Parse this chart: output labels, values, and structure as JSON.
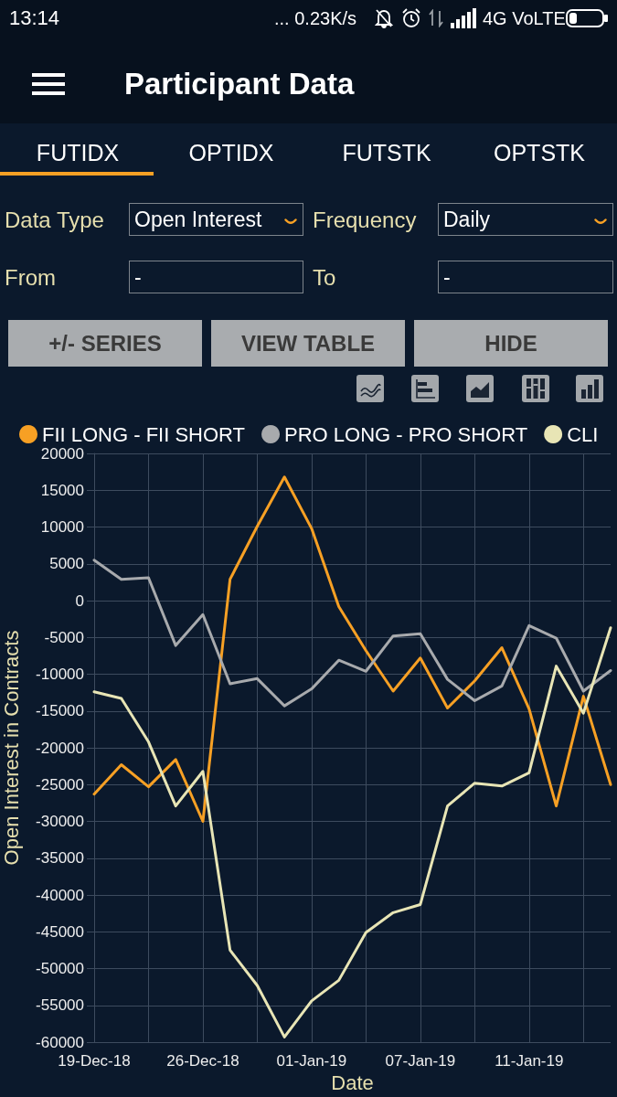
{
  "chart_data": {
    "type": "line",
    "title": "Participant Data",
    "xlabel": "Date",
    "ylabel": "Open Interest in Contracts",
    "categories": [
      "19-Dec-18",
      null,
      null,
      null,
      "26-Dec-18",
      null,
      null,
      null,
      "01-Jan-19",
      null,
      null,
      null,
      "07-Jan-19",
      null,
      null,
      null,
      "11-Jan-19",
      null,
      null,
      null
    ],
    "series": [
      {
        "name": "FII LONG - FII SHORT",
        "color": "#f7a024",
        "values": [
          -26300,
          -22300,
          -25300,
          -21600,
          -30000,
          2900,
          10100,
          16800,
          9800,
          -800,
          -6800,
          -12300,
          -7800,
          -14600,
          -10900,
          -6400,
          -14700,
          -27900,
          -13000,
          -25000
        ]
      },
      {
        "name": "PRO LONG - PRO SHORT",
        "color": "#a8aaad",
        "values": [
          5500,
          2900,
          3100,
          -6100,
          -1900,
          -11300,
          -10600,
          -14300,
          -12000,
          -8100,
          -9600,
          -4800,
          -4500,
          -10700,
          -13600,
          -11600,
          -3400,
          -5100,
          -12300,
          -9500
        ]
      },
      {
        "name": "CLI",
        "color": "#e8e5b5",
        "values": [
          -12400,
          -13300,
          -19200,
          -27900,
          -23200,
          -47500,
          -52300,
          -59300,
          -54400,
          -51600,
          -45100,
          -42400,
          -41300,
          -27900,
          -24800,
          -25200,
          -23400,
          -8900,
          -15300,
          -3700
        ]
      }
    ],
    "ylim": [
      -60000,
      20000
    ],
    "yticks": [
      -60000,
      -55000,
      -50000,
      -45000,
      -40000,
      -35000,
      -30000,
      -25000,
      -20000,
      -15000,
      -10000,
      -5000,
      0,
      5000,
      10000,
      15000,
      20000
    ],
    "grid": true,
    "legend": "top left",
    "marker": "none",
    "line_style": "solid",
    "annotations": [
      "13:14",
      "... 0.23K/s",
      "4G VoLTE",
      "FUTIDX",
      "OPTIDX",
      "FUTSTK",
      "OPTSTK",
      "Data Type",
      "Open Interest",
      "Frequency",
      "Daily",
      "From",
      "-",
      "To",
      "-",
      "+/- SERIES",
      "VIEW TABLE",
      "HIDE"
    ]
  }
}
